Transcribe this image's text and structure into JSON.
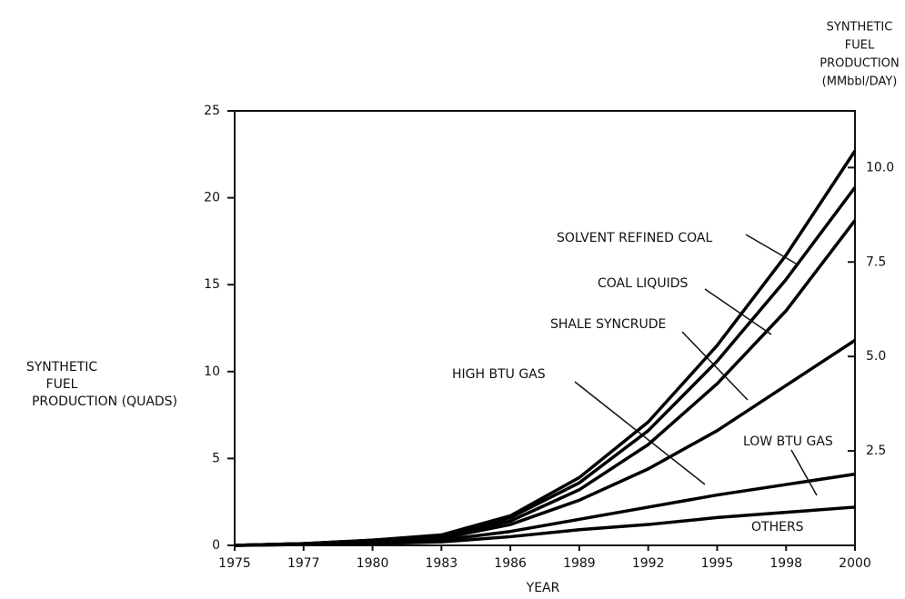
{
  "chart_data": {
    "type": "stacked_line",
    "x_label": "YEAR",
    "y_label": [
      "SYNTHETIC",
      "FUEL",
      "PRODUCTION (QUADS)"
    ],
    "y2_label": [
      "SYNTHETIC",
      "FUEL",
      "PRODUCTION",
      "(MMbbl/DAY)"
    ],
    "categories": [
      "1975",
      "1977",
      "1980",
      "1983",
      "1986",
      "1989",
      "1992",
      "1995",
      "1998",
      "2000"
    ],
    "series": [
      {
        "name": "OTHERS",
        "color": "#000000",
        "values": [
          0,
          0.05,
          0.1,
          0.2,
          0.5,
          0.9,
          1.2,
          1.6,
          1.9,
          2.2
        ]
      },
      {
        "name": "LOW BTU GAS",
        "color": "#000000",
        "values": [
          0,
          0,
          0.05,
          0.1,
          0.3,
          0.6,
          1.0,
          1.3,
          1.6,
          1.9
        ]
      },
      {
        "name": "HIGH BTU GAS",
        "color": "#000000",
        "values": [
          0,
          0.05,
          0.05,
          0.1,
          0.4,
          1.1,
          2.2,
          3.7,
          5.7,
          7.7
        ]
      },
      {
        "name": "SHALE SYNCRUDE",
        "color": "#000000",
        "values": [
          0,
          0,
          0.05,
          0.1,
          0.2,
          0.6,
          1.4,
          2.7,
          4.3,
          6.9
        ]
      },
      {
        "name": "COAL LIQUIDS",
        "color": "#000000",
        "values": [
          0,
          0,
          0.05,
          0.05,
          0.2,
          0.4,
          0.8,
          1.3,
          1.8,
          1.9
        ]
      },
      {
        "name": "SOLVENT REFINED COAL",
        "color": "#000000",
        "values": [
          0,
          0,
          0,
          0.05,
          0.1,
          0.3,
          0.5,
          0.9,
          1.4,
          2.1
        ]
      }
    ],
    "ylim": [
      0,
      25
    ],
    "yticks": [
      0,
      5,
      10,
      15,
      20,
      25
    ],
    "y2lim": [
      0,
      11.5
    ],
    "y2ticks": [
      2.5,
      {
        "value": 5,
        "label": "5.0"
      },
      7.5,
      {
        "value": 10,
        "label": "10.0"
      }
    ]
  }
}
